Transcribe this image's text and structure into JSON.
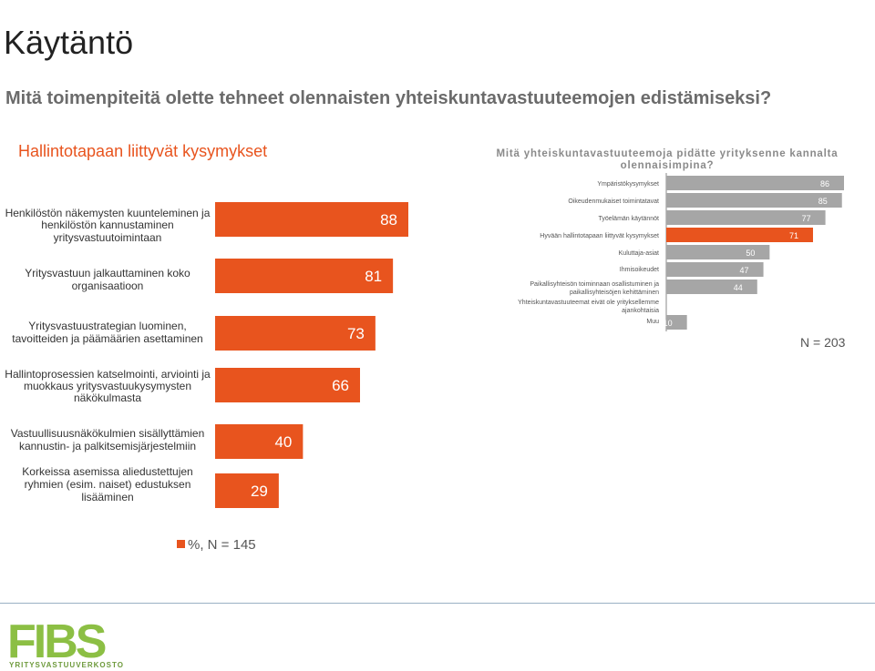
{
  "page": {
    "title": "Käytäntö",
    "question": "Mitä toimenpiteitä olette tehneet olennaisten yhteiskuntavastuuteemojen edistämiseksi?",
    "left_heading": "Hallintotapaan liittyvät kysymykset",
    "right_heading": "Mitä yhteiskuntavastuuteemoja pidätte yrityksenne kannalta olennaisimpina?",
    "left_n": "%, N = 145",
    "right_n": "N = 203"
  },
  "colors": {
    "accent": "#e8541e",
    "grey_bar": "#a6a6a6",
    "text": "#333333",
    "logo_green": "#8cbf44"
  },
  "logo": {
    "text": "FIBS",
    "subtext": "YRITYSVASTUUVERKOSTO"
  },
  "chart_data": [
    {
      "type": "bar",
      "orientation": "horizontal",
      "categories": [
        [
          "Henkilöstön näkemysten kuunteleminen ja",
          "henkilöstön kannustaminen",
          "yritysvastuutoimintaan"
        ],
        [
          "Yritysvastuun jalkauttaminen koko",
          "organisaatioon"
        ],
        [
          "Yritysvastuustrategian luominen,",
          "tavoitteiden ja päämäärien asettaminen"
        ],
        [
          "Hallintoprosessien katselmointi, arviointi ja",
          "muokkaus yritysvastuukysymysten",
          "näkökulmasta"
        ],
        [
          "Vastuullisuusnäkökulmien sisällyttämien",
          "kannustin- ja palkitsemisjärjestelmiin"
        ],
        [
          "Korkeissa asemissa aliedustettujen",
          "ryhmien (esim. naiset) edustuksen",
          "lisääminen"
        ]
      ],
      "values": [
        88,
        81,
        73,
        66,
        40,
        29
      ],
      "labels": [
        "88",
        "81",
        "73",
        "66",
        "40",
        "29"
      ],
      "title": "Hallintotapaan liittyvät kysymykset",
      "legend": "%, N = 145",
      "color": "#e8541e"
    },
    {
      "type": "bar",
      "orientation": "horizontal",
      "categories": [
        [
          "Ympäristökysymykset"
        ],
        [
          "Oikeudenmukaiset toimintatavat"
        ],
        [
          "Työelämän käytännöt"
        ],
        [
          "Hyvään hallintotapaan liittyvät kysymykset"
        ],
        [
          "Kuluttaja-asiat"
        ],
        [
          "Ihmisoikeudet"
        ],
        [
          "Paikallisyhteisön toiminnaan osallistuminen ja",
          "paikallisyhteisöjen kehittäminen"
        ],
        [
          "Yhteiskuntavastuuteemat eivät ole yrityksellemme",
          "ajankohtaisia"
        ],
        [
          "Muu"
        ]
      ],
      "values": [
        86,
        85,
        77,
        71,
        50,
        47,
        44,
        null,
        10
      ],
      "labels": [
        "86",
        "85",
        "77",
        "71",
        "50",
        "47",
        "44",
        "",
        "10"
      ],
      "highlight_index": 3,
      "title": "Mitä yhteiskuntavastuuteemoja pidätte yrityksenne kannalta olennaisimpina?",
      "legend": "N = 203"
    }
  ]
}
